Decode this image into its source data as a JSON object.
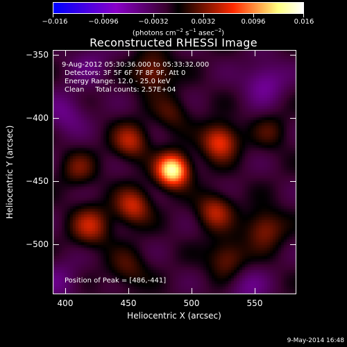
{
  "colorbar": {
    "tick_labels": [
      "−0.016",
      "−0.0096",
      "−0.0032",
      "0.0032",
      "0.0096",
      "0.016"
    ],
    "units": {
      "pre": "(photons cm",
      "exp1": "−2",
      "mid": " s",
      "exp2": "−1",
      "mid2": " asec",
      "exp3": "−2",
      "post": ")"
    },
    "colors": [
      "#0000ff",
      "#8a00c8",
      "#3a0030",
      "#000000",
      "#ff2a00",
      "#ffff80",
      "#ffffff"
    ]
  },
  "title": "Reconstructed RHESSI Image",
  "annotations": {
    "time_range": "9-Aug-2012 05:30:36.000 to 05:33:32.000",
    "detectors": "Detectors: 3F 5F 6F 7F 8F 9F, Att 0",
    "energy_range": "Energy Range: 12.0 - 25.0 keV",
    "clean": "Clean     Total counts: 2.57E+04",
    "peak_position": "Position of Peak = [486,-441]"
  },
  "chart_data": {
    "type": "heatmap",
    "title": "Reconstructed RHESSI Image",
    "xlabel": "Heliocentric X (arcsec)",
    "ylabel": "Heliocentric Y (arcsec)",
    "xlim": [
      390,
      585
    ],
    "ylim": [
      -540,
      -345
    ],
    "x_ticks": [
      400,
      450,
      500,
      550
    ],
    "y_ticks": [
      -350,
      -400,
      -450,
      -500
    ],
    "x_tick_labels": [
      "400",
      "450",
      "500",
      "550"
    ],
    "y_tick_labels": [
      "−350",
      "−400",
      "−450",
      "−500"
    ],
    "colorbar_range": [
      -0.016,
      0.016
    ],
    "peak": {
      "x": 486,
      "y": -441,
      "value": 0.016
    },
    "sources": [
      {
        "x": 486,
        "y": -441,
        "amp": 1.0,
        "sigma": 9
      },
      {
        "x": 524,
        "y": -418,
        "amp": 0.55,
        "sigma": 10
      },
      {
        "x": 454,
        "y": -470,
        "amp": 0.45,
        "sigma": 10
      },
      {
        "x": 452,
        "y": -418,
        "amp": 0.4,
        "sigma": 10
      },
      {
        "x": 520,
        "y": -474,
        "amp": 0.4,
        "sigma": 10
      },
      {
        "x": 420,
        "y": -486,
        "amp": 0.4,
        "sigma": 11
      },
      {
        "x": 560,
        "y": -488,
        "amp": 0.35,
        "sigma": 11
      },
      {
        "x": 470,
        "y": -362,
        "amp": 0.35,
        "sigma": 11
      },
      {
        "x": 530,
        "y": -512,
        "amp": 0.32,
        "sigma": 11
      },
      {
        "x": 410,
        "y": -440,
        "amp": 0.25,
        "sigma": 10
      },
      {
        "x": 485,
        "y": -395,
        "amp": 0.22,
        "sigma": 10
      },
      {
        "x": 450,
        "y": -520,
        "amp": 0.22,
        "sigma": 11
      },
      {
        "x": 565,
        "y": -410,
        "amp": 0.18,
        "sigma": 10
      },
      {
        "x": 400,
        "y": -395,
        "amp": -0.22,
        "sigma": 12
      },
      {
        "x": 560,
        "y": -370,
        "amp": -0.28,
        "sigma": 12
      },
      {
        "x": 545,
        "y": -535,
        "amp": -0.2,
        "sigma": 12
      },
      {
        "x": 395,
        "y": -530,
        "amp": -0.18,
        "sigma": 12
      },
      {
        "x": 420,
        "y": -355,
        "amp": -0.15,
        "sigma": 12
      }
    ]
  },
  "axes": {
    "xlabel": "Heliocentric X (arcsec)",
    "ylabel": "Heliocentric Y (arcsec)"
  },
  "timestamp": "9-May-2014 16:48"
}
